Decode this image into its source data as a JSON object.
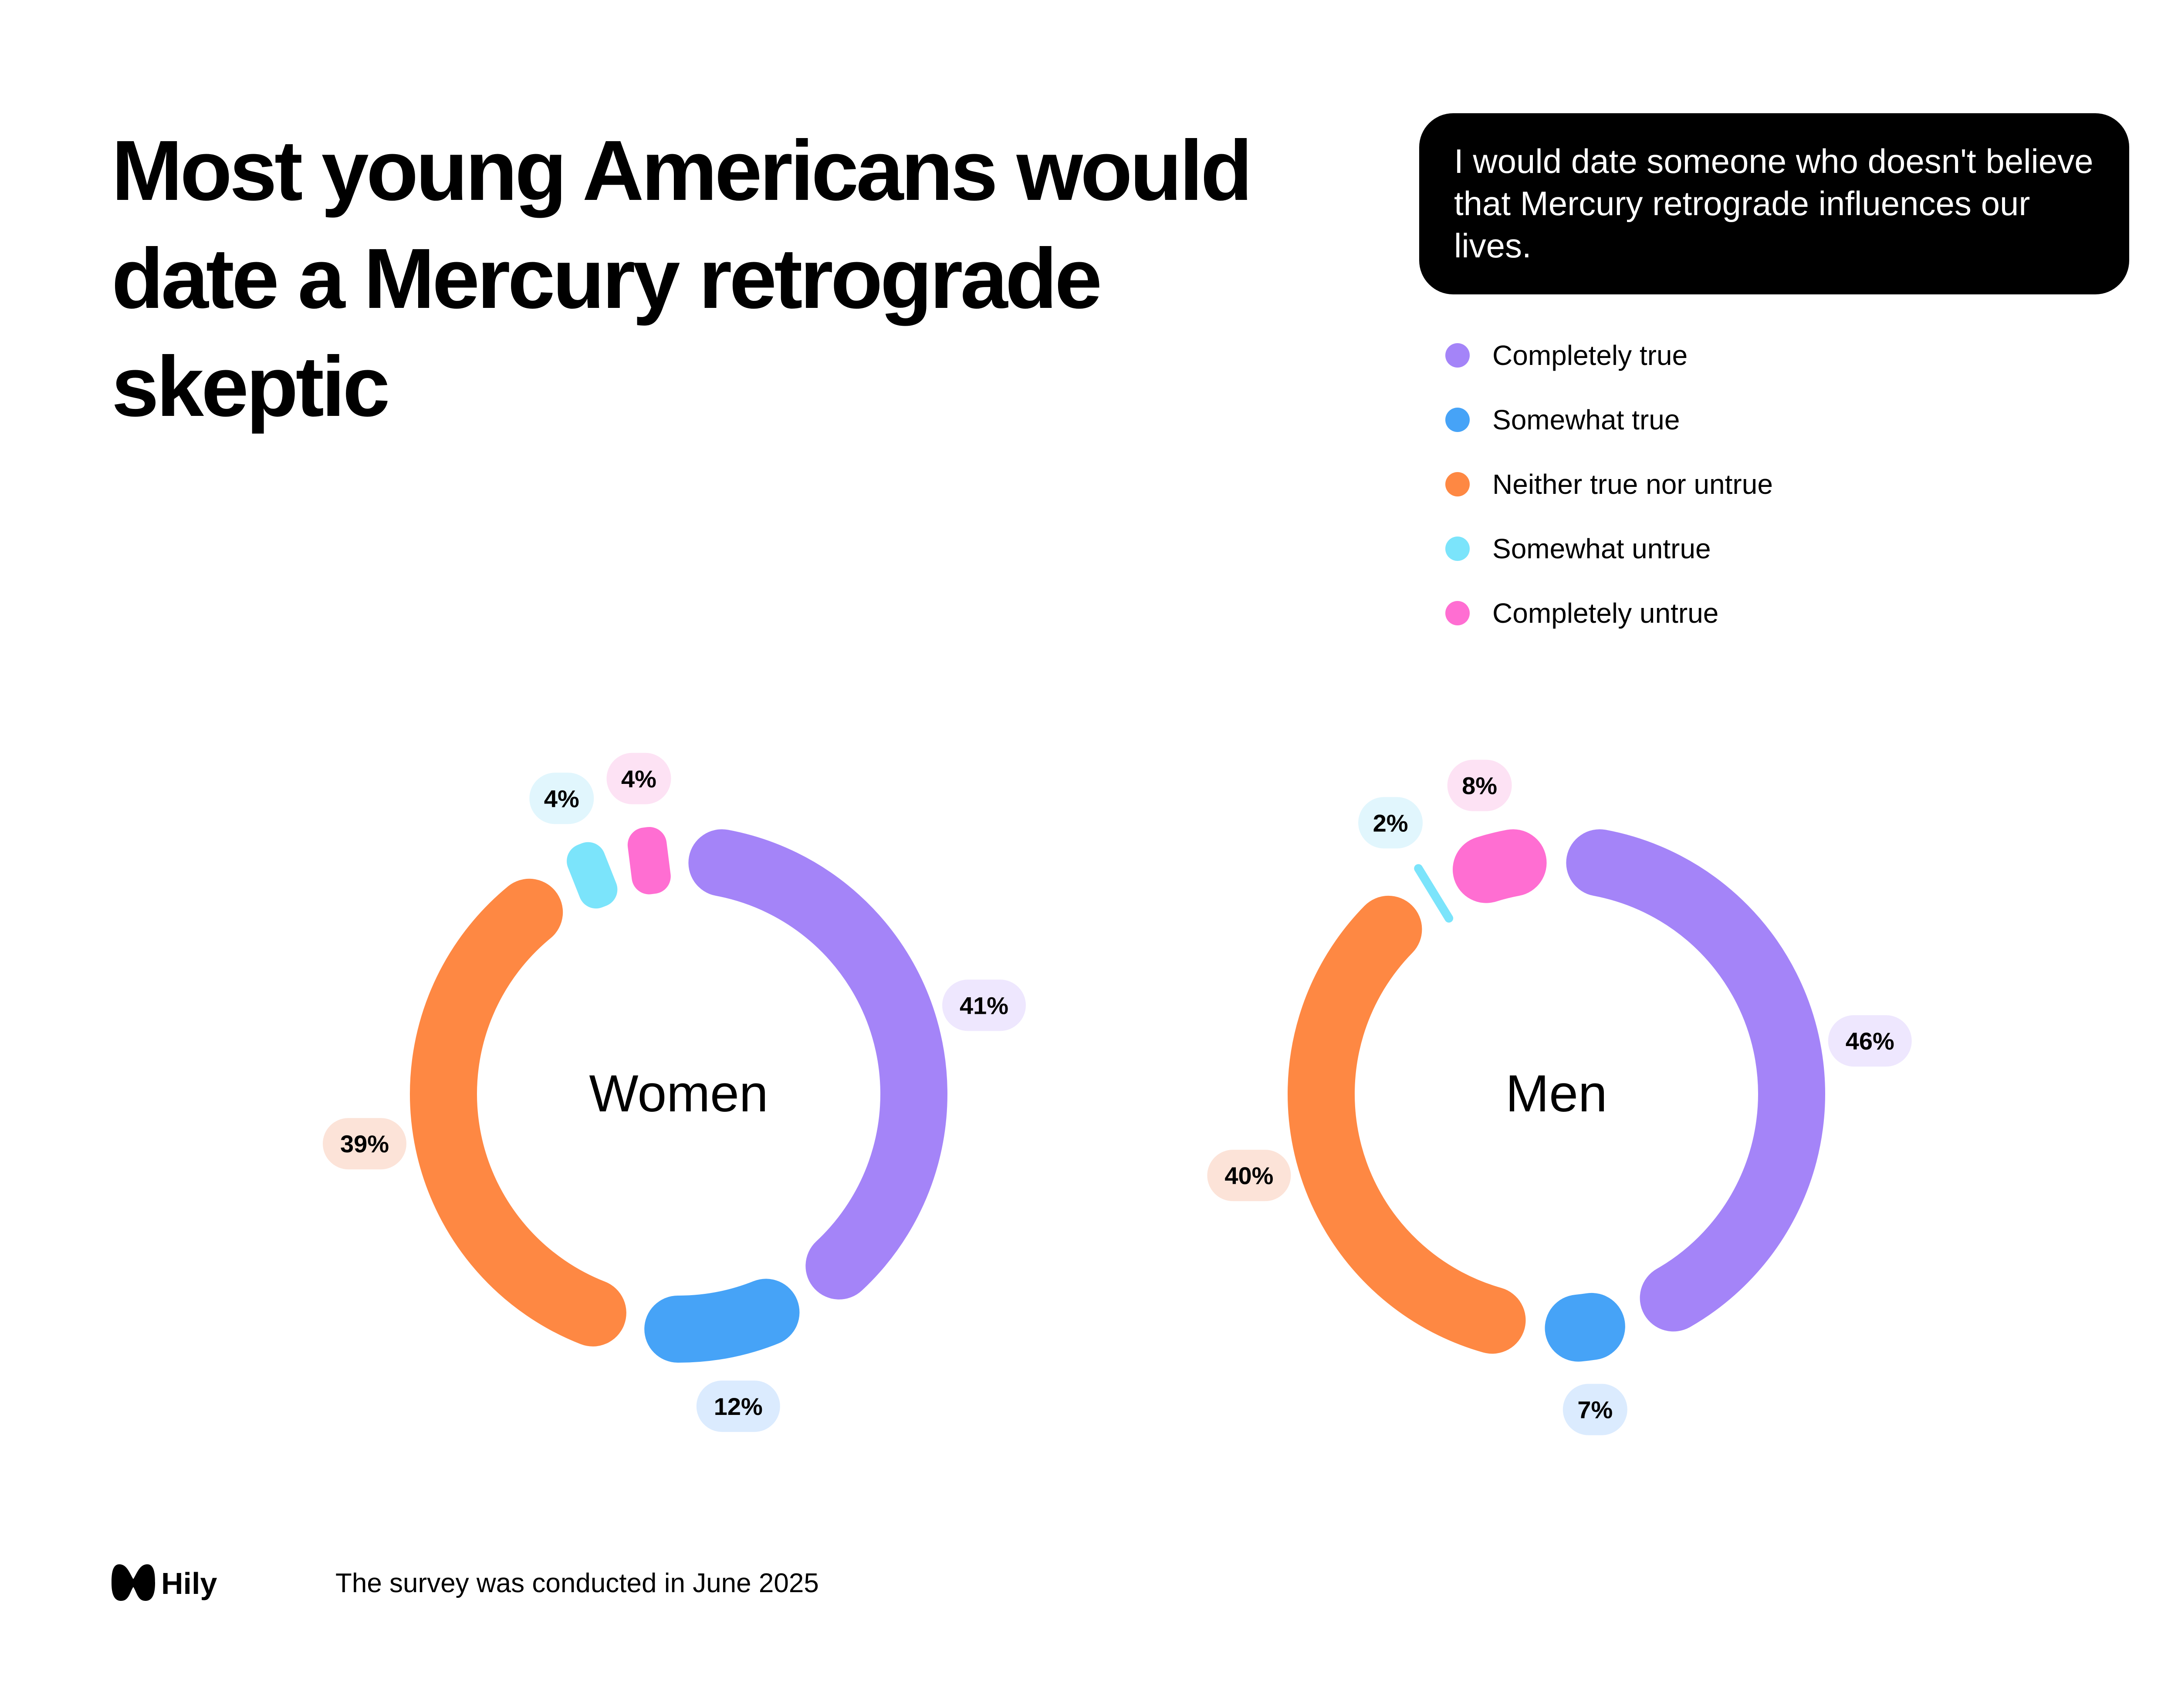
{
  "title": "Most young Americans would date a Mercury retrograde skeptic",
  "question": "I would date someone who doesn't believe that Mercury retrograde influences our lives.",
  "footer": {
    "brand": "Hily",
    "note": "The survey was conducted in June 2025"
  },
  "chart_data": [
    {
      "type": "pie",
      "style": "donut",
      "center_label": "Women",
      "categories": [
        "Completely true",
        "Somewhat true",
        "Neither true nor untrue",
        "Somewhat untrue",
        "Completely untrue"
      ],
      "values": [
        41,
        12,
        39,
        4,
        4
      ],
      "value_labels": [
        "41%",
        "12%",
        "39%",
        "4%",
        "4%"
      ],
      "colors": [
        "#A484F8",
        "#46A3F7",
        "#FE8843",
        "#7BE4FB",
        "#FF6ED2"
      ],
      "label_backgrounds": [
        "#EEE7FE",
        "#DBEBFE",
        "#FCE3D8",
        "#E1F6FD",
        "#FDE2F4"
      ]
    },
    {
      "type": "pie",
      "style": "donut",
      "center_label": "Men",
      "categories": [
        "Completely true",
        "Somewhat true",
        "Neither true nor untrue",
        "Somewhat untrue",
        "Completely untrue"
      ],
      "values": [
        46,
        7,
        40,
        2,
        8
      ],
      "value_labels": [
        "46%",
        "7%",
        "40%",
        "2%",
        "8%"
      ],
      "colors": [
        "#A484F8",
        "#46A3F7",
        "#FE8843",
        "#7BE4FB",
        "#FF6ED2"
      ],
      "label_backgrounds": [
        "#EEE7FE",
        "#DBEBFE",
        "#FCE3D8",
        "#E1F6FD",
        "#FDE2F4"
      ]
    }
  ],
  "legend": {
    "placement": "top-right",
    "items": [
      {
        "label": "Completely true",
        "color": "#A484F8"
      },
      {
        "label": "Somewhat true",
        "color": "#46A3F7"
      },
      {
        "label": "Neither true nor untrue",
        "color": "#FE8843"
      },
      {
        "label": "Somewhat untrue",
        "color": "#7BE4FB"
      },
      {
        "label": "Completely untrue",
        "color": "#FF6ED2"
      }
    ]
  }
}
